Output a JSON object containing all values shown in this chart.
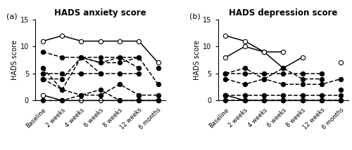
{
  "title_a": "HADS anxiety score",
  "title_b": "HADS depression score",
  "ylabel": "HADS score",
  "label_a": "(a)",
  "label_b": "(b)",
  "xtick_labels": [
    "Baseline",
    "2 weeks",
    "4 weeks",
    "6 weeks",
    "8 weeks",
    "12 weeks",
    "6 months"
  ],
  "ylim": [
    0,
    15
  ],
  "yticks": [
    0,
    5,
    10,
    15
  ],
  "anxiety_lines": [
    {
      "y": [
        11,
        12,
        11,
        11,
        11,
        11,
        7
      ],
      "style": "solid",
      "marker": "open"
    },
    {
      "y": [
        1,
        0,
        0,
        0,
        0,
        0,
        0
      ],
      "style": "solid",
      "marker": "open"
    },
    {
      "y": [
        9,
        8,
        8,
        8,
        8,
        8,
        null
      ],
      "style": "dashed",
      "marker": "filled"
    },
    {
      "y": [
        5,
        5,
        5,
        5,
        5,
        5,
        null
      ],
      "style": "dashed",
      "marker": "filled"
    },
    {
      "y": [
        4,
        4,
        8,
        7,
        7,
        8,
        3
      ],
      "style": "dashed",
      "marker": "filled"
    },
    {
      "y": [
        4,
        2,
        1,
        1,
        3,
        1,
        1
      ],
      "style": "dashed",
      "marker": "filled"
    },
    {
      "y": [
        6,
        2,
        8,
        7,
        8,
        6,
        null
      ],
      "style": "dashed",
      "marker": "filled"
    },
    {
      "y": [
        0,
        0,
        1,
        2,
        0,
        0,
        0
      ],
      "style": "dashed",
      "marker": "filled"
    },
    {
      "y": [
        4,
        null,
        8,
        5,
        null,
        1,
        null
      ],
      "style": "dashed",
      "marker": "filled"
    },
    {
      "y": [
        5,
        null,
        null,
        null,
        null,
        null,
        6
      ],
      "style": "solid",
      "marker": "filled"
    }
  ],
  "depression_lines": [
    {
      "y": [
        12,
        11,
        9,
        9,
        null,
        null,
        7
      ],
      "style": "solid",
      "marker": "open"
    },
    {
      "y": [
        8,
        10,
        9,
        6,
        8,
        null,
        null
      ],
      "style": "solid",
      "marker": "open"
    },
    {
      "y": [
        1,
        0,
        0,
        0,
        0,
        0,
        0
      ],
      "style": "solid",
      "marker": "open"
    },
    {
      "y": [
        5,
        5,
        5,
        5,
        5,
        5,
        null
      ],
      "style": "dashed",
      "marker": "filled"
    },
    {
      "y": [
        5,
        6,
        4,
        3,
        3,
        3,
        4
      ],
      "style": "dashed",
      "marker": "filled"
    },
    {
      "y": [
        4,
        3,
        4,
        6,
        4,
        4,
        null
      ],
      "style": "dashed",
      "marker": "filled"
    },
    {
      "y": [
        1,
        1,
        1,
        1,
        1,
        1,
        1
      ],
      "style": "dashed",
      "marker": "filled"
    },
    {
      "y": [
        0,
        0,
        0,
        0,
        0,
        0,
        0
      ],
      "style": "dashed",
      "marker": "filled"
    },
    {
      "y": [
        1,
        null,
        null,
        null,
        null,
        null,
        2
      ],
      "style": "dashed",
      "marker": "filled"
    },
    {
      "y": [
        5,
        null,
        null,
        null,
        null,
        null,
        null
      ],
      "style": "solid",
      "marker": "filled"
    }
  ],
  "line_color": "#000000",
  "markersize": 4.5,
  "linewidth": 1.1
}
